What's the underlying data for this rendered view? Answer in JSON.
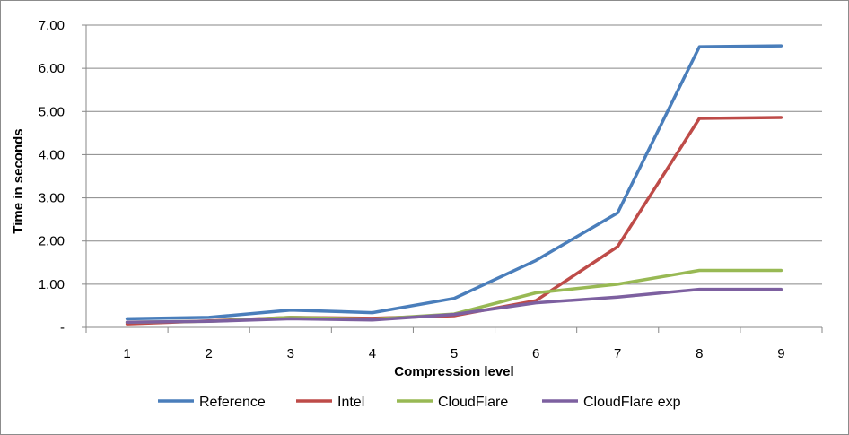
{
  "chart_data": {
    "type": "line",
    "xlabel": "Compression level",
    "ylabel": "Time in seconds",
    "categories": [
      "1",
      "2",
      "3",
      "4",
      "5",
      "6",
      "7",
      "8",
      "9"
    ],
    "ylim": [
      0,
      7
    ],
    "yticks": [
      0,
      1,
      2,
      3,
      4,
      5,
      6,
      7
    ],
    "ytick_labels": [
      "-",
      "1.00",
      "2.00",
      "3.00",
      "4.00",
      "5.00",
      "6.00",
      "7.00"
    ],
    "grid": true,
    "legend_position": "bottom",
    "series": [
      {
        "name": "Reference",
        "color": "#4a7ebb",
        "values": [
          0.2,
          0.23,
          0.4,
          0.34,
          0.67,
          1.55,
          2.65,
          6.5,
          6.52
        ]
      },
      {
        "name": "Intel",
        "color": "#be4b48",
        "values": [
          0.08,
          0.15,
          0.23,
          0.21,
          0.27,
          0.62,
          1.87,
          4.84,
          4.86
        ]
      },
      {
        "name": "CloudFlare",
        "color": "#98b954",
        "values": [
          0.12,
          0.14,
          0.23,
          0.19,
          0.31,
          0.8,
          1.0,
          1.32,
          1.32
        ]
      },
      {
        "name": "CloudFlare exp",
        "color": "#7d60a0",
        "values": [
          0.12,
          0.14,
          0.2,
          0.17,
          0.3,
          0.57,
          0.7,
          0.88,
          0.88
        ]
      }
    ]
  }
}
